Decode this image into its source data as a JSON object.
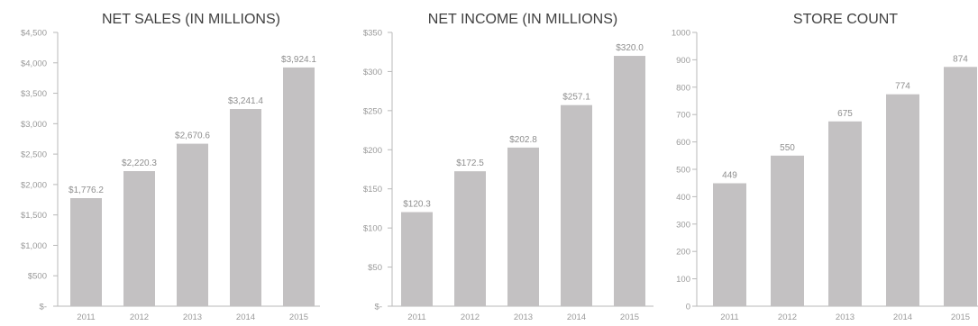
{
  "bar_color": "#c3c1c2",
  "chart_data": [
    {
      "type": "bar",
      "title": "NET SALES (IN MILLIONS)",
      "categories": [
        "2011",
        "2012",
        "2013",
        "2014",
        "2015"
      ],
      "values": [
        1776.2,
        2220.3,
        2670.6,
        3241.4,
        3924.1
      ],
      "value_labels": [
        "$1,776.2",
        "$2,220.3",
        "$2,670.6",
        "$3,241.4",
        "$3,924.1"
      ],
      "ylim": [
        0,
        4500
      ],
      "yticks": [
        0,
        500,
        1000,
        1500,
        2000,
        2500,
        3000,
        3500,
        4000,
        4500
      ],
      "ytick_labels": [
        "$-",
        "$500",
        "$1,000",
        "$1,500",
        "$2,000",
        "$2,500",
        "$3,000",
        "$3,500",
        "$4,000",
        "$4,500"
      ],
      "xlabel": "",
      "ylabel": "",
      "grid": false
    },
    {
      "type": "bar",
      "title": "NET INCOME (IN MILLIONS)",
      "categories": [
        "2011",
        "2012",
        "2013",
        "2014",
        "2015"
      ],
      "values": [
        120.3,
        172.5,
        202.8,
        257.1,
        320.0
      ],
      "value_labels": [
        "$120.3",
        "$172.5",
        "$202.8",
        "$257.1",
        "$320.0"
      ],
      "ylim": [
        0,
        350
      ],
      "yticks": [
        0,
        50,
        100,
        150,
        200,
        250,
        300,
        350
      ],
      "ytick_labels": [
        "$-",
        "$50",
        "$100",
        "$150",
        "$200",
        "$250",
        "$300",
        "$350"
      ],
      "xlabel": "",
      "ylabel": "",
      "grid": false
    },
    {
      "type": "bar",
      "title": "STORE COUNT",
      "categories": [
        "2011",
        "2012",
        "2013",
        "2014",
        "2015"
      ],
      "values": [
        449,
        550,
        675,
        774,
        874
      ],
      "value_labels": [
        "449",
        "550",
        "675",
        "774",
        "874"
      ],
      "ylim": [
        0,
        1000
      ],
      "yticks": [
        0,
        100,
        200,
        300,
        400,
        500,
        600,
        700,
        800,
        900,
        1000
      ],
      "ytick_labels": [
        "0",
        "100",
        "200",
        "300",
        "400",
        "500",
        "600",
        "700",
        "800",
        "900",
        "1000"
      ],
      "xlabel": "",
      "ylabel": "",
      "grid": false
    }
  ]
}
